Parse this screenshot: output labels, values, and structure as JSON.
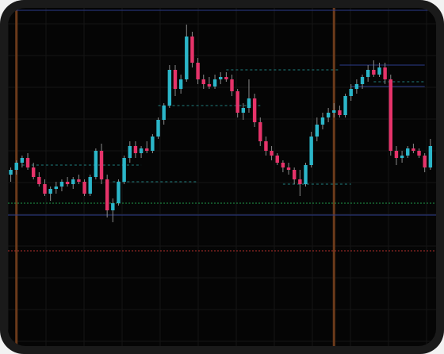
{
  "colors": {
    "background": "#050505",
    "frame": "#1a1a1a",
    "grid": "#151515",
    "bull": "#2bb6c9",
    "bear": "#e6336a",
    "wick": "#8a8a8a",
    "vertical_marker": "#6b3a1a",
    "horizontal_line": "#2c3a8c",
    "dashed_level": "#1f7f7f",
    "green_dotted": "#1f9a4a",
    "red_dotted": "#b3302a"
  },
  "chart_data": {
    "type": "candlestick",
    "title": "",
    "xlabel": "",
    "ylabel": "",
    "grid": true,
    "ylim": [
      0,
      100
    ],
    "candles": [
      {
        "o": 40,
        "h": 43,
        "l": 37,
        "c": 42
      },
      {
        "o": 42,
        "h": 46,
        "l": 40,
        "c": 45
      },
      {
        "o": 45,
        "h": 48,
        "l": 43,
        "c": 47
      },
      {
        "o": 47,
        "h": 49,
        "l": 42,
        "c": 43
      },
      {
        "o": 43,
        "h": 45,
        "l": 38,
        "c": 39
      },
      {
        "o": 39,
        "h": 41,
        "l": 35,
        "c": 36
      },
      {
        "o": 36,
        "h": 38,
        "l": 31,
        "c": 32
      },
      {
        "o": 32,
        "h": 35,
        "l": 29,
        "c": 34
      },
      {
        "o": 34,
        "h": 37,
        "l": 32,
        "c": 35
      },
      {
        "o": 35,
        "h": 38,
        "l": 33,
        "c": 37
      },
      {
        "o": 37,
        "h": 39,
        "l": 35,
        "c": 36
      },
      {
        "o": 36,
        "h": 39,
        "l": 34,
        "c": 38
      },
      {
        "o": 38,
        "h": 40,
        "l": 36,
        "c": 37
      },
      {
        "o": 37,
        "h": 38,
        "l": 31,
        "c": 32
      },
      {
        "o": 32,
        "h": 40,
        "l": 31,
        "c": 39
      },
      {
        "o": 39,
        "h": 51,
        "l": 38,
        "c": 50
      },
      {
        "o": 50,
        "h": 53,
        "l": 36,
        "c": 38
      },
      {
        "o": 38,
        "h": 40,
        "l": 22,
        "c": 25
      },
      {
        "o": 25,
        "h": 30,
        "l": 20,
        "c": 28
      },
      {
        "o": 28,
        "h": 38,
        "l": 27,
        "c": 37
      },
      {
        "o": 37,
        "h": 48,
        "l": 36,
        "c": 47
      },
      {
        "o": 47,
        "h": 54,
        "l": 45,
        "c": 52
      },
      {
        "o": 52,
        "h": 54,
        "l": 47,
        "c": 49
      },
      {
        "o": 49,
        "h": 52,
        "l": 47,
        "c": 51
      },
      {
        "o": 51,
        "h": 54,
        "l": 49,
        "c": 50
      },
      {
        "o": 50,
        "h": 57,
        "l": 49,
        "c": 56
      },
      {
        "o": 56,
        "h": 64,
        "l": 55,
        "c": 63
      },
      {
        "o": 63,
        "h": 70,
        "l": 61,
        "c": 69
      },
      {
        "o": 69,
        "h": 86,
        "l": 68,
        "c": 84
      },
      {
        "o": 84,
        "h": 86,
        "l": 73,
        "c": 76
      },
      {
        "o": 76,
        "h": 82,
        "l": 74,
        "c": 80
      },
      {
        "o": 80,
        "h": 103,
        "l": 79,
        "c": 98
      },
      {
        "o": 98,
        "h": 100,
        "l": 85,
        "c": 87
      },
      {
        "o": 87,
        "h": 89,
        "l": 78,
        "c": 80
      },
      {
        "o": 80,
        "h": 82,
        "l": 76,
        "c": 78
      },
      {
        "o": 78,
        "h": 81,
        "l": 76,
        "c": 77
      },
      {
        "o": 77,
        "h": 82,
        "l": 76,
        "c": 80
      },
      {
        "o": 80,
        "h": 83,
        "l": 78,
        "c": 81
      },
      {
        "o": 81,
        "h": 83,
        "l": 79,
        "c": 80
      },
      {
        "o": 80,
        "h": 82,
        "l": 73,
        "c": 75
      },
      {
        "o": 75,
        "h": 76,
        "l": 64,
        "c": 66
      },
      {
        "o": 66,
        "h": 70,
        "l": 63,
        "c": 68
      },
      {
        "o": 68,
        "h": 80,
        "l": 66,
        "c": 72
      },
      {
        "o": 72,
        "h": 74,
        "l": 60,
        "c": 62
      },
      {
        "o": 62,
        "h": 64,
        "l": 52,
        "c": 54
      },
      {
        "o": 54,
        "h": 56,
        "l": 48,
        "c": 50
      },
      {
        "o": 50,
        "h": 52,
        "l": 46,
        "c": 48
      },
      {
        "o": 48,
        "h": 49,
        "l": 44,
        "c": 45
      },
      {
        "o": 45,
        "h": 46,
        "l": 41,
        "c": 43
      },
      {
        "o": 43,
        "h": 45,
        "l": 40,
        "c": 42
      },
      {
        "o": 42,
        "h": 43,
        "l": 36,
        "c": 38
      },
      {
        "o": 38,
        "h": 42,
        "l": 31,
        "c": 36
      },
      {
        "o": 36,
        "h": 45,
        "l": 35,
        "c": 44
      },
      {
        "o": 44,
        "h": 58,
        "l": 43,
        "c": 56
      },
      {
        "o": 56,
        "h": 64,
        "l": 54,
        "c": 61
      },
      {
        "o": 61,
        "h": 66,
        "l": 59,
        "c": 64
      },
      {
        "o": 64,
        "h": 68,
        "l": 62,
        "c": 66
      },
      {
        "o": 66,
        "h": 70,
        "l": 64,
        "c": 67
      },
      {
        "o": 67,
        "h": 69,
        "l": 64,
        "c": 65
      },
      {
        "o": 65,
        "h": 74,
        "l": 64,
        "c": 73
      },
      {
        "o": 73,
        "h": 78,
        "l": 71,
        "c": 76
      },
      {
        "o": 76,
        "h": 80,
        "l": 74,
        "c": 78
      },
      {
        "o": 78,
        "h": 82,
        "l": 76,
        "c": 81
      },
      {
        "o": 81,
        "h": 86,
        "l": 79,
        "c": 84
      },
      {
        "o": 84,
        "h": 88,
        "l": 81,
        "c": 82
      },
      {
        "o": 82,
        "h": 87,
        "l": 81,
        "c": 85
      },
      {
        "o": 85,
        "h": 87,
        "l": 78,
        "c": 80
      },
      {
        "o": 80,
        "h": 82,
        "l": 48,
        "c": 50
      },
      {
        "o": 50,
        "h": 52,
        "l": 44,
        "c": 47
      },
      {
        "o": 47,
        "h": 50,
        "l": 45,
        "c": 48
      },
      {
        "o": 48,
        "h": 52,
        "l": 47,
        "c": 51
      },
      {
        "o": 51,
        "h": 53,
        "l": 49,
        "c": 50
      },
      {
        "o": 50,
        "h": 51,
        "l": 47,
        "c": 48
      },
      {
        "o": 48,
        "h": 49,
        "l": 41,
        "c": 43
      },
      {
        "o": 43,
        "h": 55,
        "l": 42,
        "c": 52
      }
    ],
    "horizontal_levels": [
      {
        "value": 109,
        "style": "solid",
        "color": "horizontal_line"
      },
      {
        "value": 23,
        "style": "solid",
        "color": "horizontal_line"
      },
      {
        "value": 28,
        "style": "dotted",
        "color": "green_dotted"
      },
      {
        "value": 8,
        "style": "dotted",
        "color": "red_dotted"
      }
    ],
    "segment_levels": [
      {
        "from": 2,
        "to": 23,
        "value": 44,
        "color": "dashed_level"
      },
      {
        "from": 18,
        "to": 33,
        "value": 37,
        "color": "dashed_level"
      },
      {
        "from": 26,
        "to": 44,
        "value": 69,
        "color": "dashed_level"
      },
      {
        "from": 38,
        "to": 58,
        "value": 84,
        "color": "dashed_level"
      },
      {
        "from": 48,
        "to": 60,
        "value": 36,
        "color": "dashed_level"
      },
      {
        "from": 58,
        "to": 73,
        "value": 86,
        "color": "horizontal_line"
      },
      {
        "from": 60,
        "to": 73,
        "value": 77,
        "color": "horizontal_line"
      },
      {
        "from": 64,
        "to": 73,
        "value": 79,
        "color": "dashed_level"
      }
    ],
    "vertical_markers": [
      1,
      57
    ]
  }
}
